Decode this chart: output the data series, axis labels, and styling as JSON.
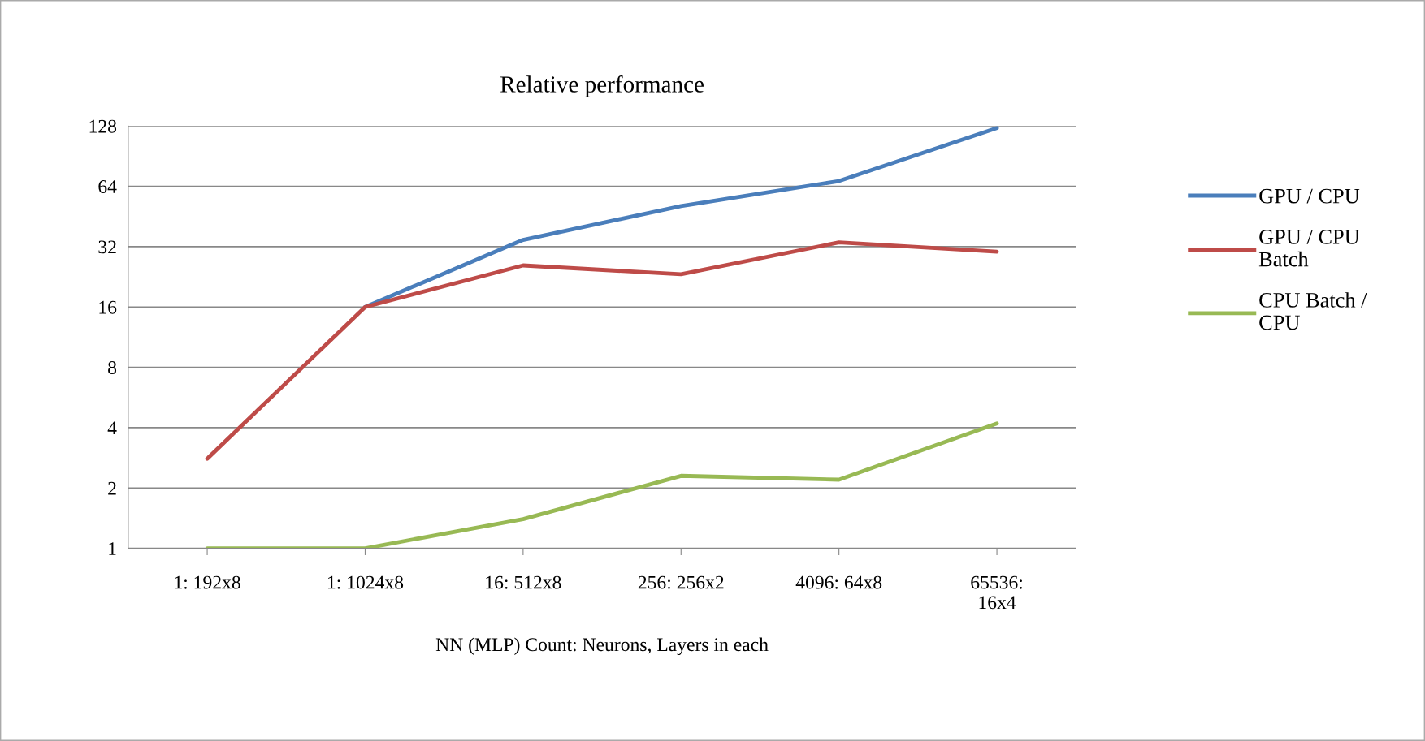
{
  "chart_data": {
    "type": "line",
    "title": "Relative performance",
    "xlabel": "NN (MLP) Count: Neurons, Layers in each",
    "categories": [
      "1: 192x8",
      "1: 1024x8",
      "16: 512x8",
      "256: 256x2",
      "4096: 64x8",
      "65536:\n16x4"
    ],
    "series": [
      {
        "name": "GPU / CPU",
        "color": "#4a7ebb",
        "values": [
          null,
          16,
          34.6,
          51,
          68,
          125
        ]
      },
      {
        "name": "GPU / CPU\nBatch",
        "color": "#be4b48",
        "values": [
          2.8,
          16,
          25.8,
          23.3,
          33.6,
          30.2
        ]
      },
      {
        "name": "CPU Batch /\nCPU",
        "color": "#98b954",
        "values": [
          1.0,
          1.0,
          1.4,
          2.3,
          2.2,
          4.2
        ]
      }
    ],
    "log": true,
    "ylim": [
      1,
      128
    ],
    "yticks": [
      1,
      2,
      4,
      8,
      16,
      32,
      64,
      128
    ],
    "grid": "y",
    "legend": "right",
    "marker": "none",
    "line_style": "solid"
  }
}
